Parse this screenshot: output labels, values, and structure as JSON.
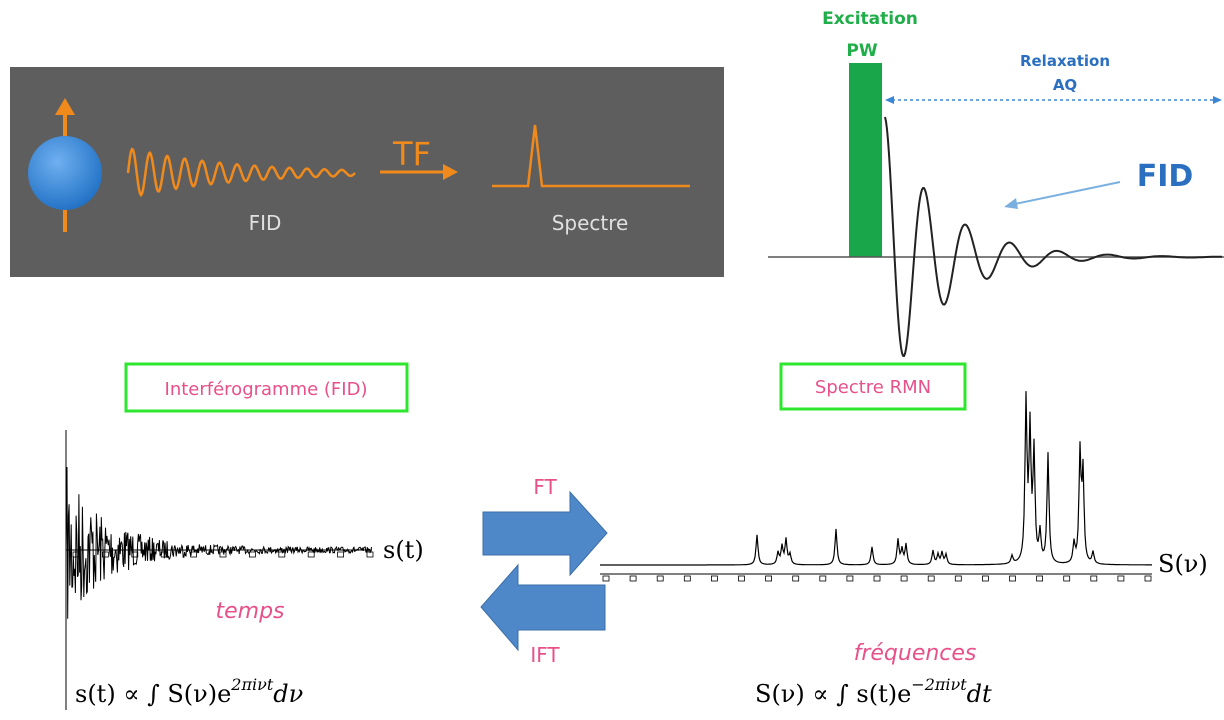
{
  "top_left": {
    "transform": "TF",
    "fid": "FID",
    "spectrum": "Spectre"
  },
  "top_right": {
    "excitation": "Excitation",
    "pulse": "PW",
    "relaxation": "Relaxation",
    "acquisition": "AQ",
    "fid": "FID"
  },
  "bottom": {
    "left_box": "Interférogramme (FID)",
    "right_box": "Spectre RMN",
    "forward": "FT",
    "inverse": "IFT",
    "time_signal": "s(t)",
    "freq_signal": "S(ν)",
    "time_label": "temps",
    "freq_label": "fréquences",
    "formula_left": {
      "main": "s(t) ∝ ∫ S(ν)e",
      "exponent": "2πiνt",
      "tail": "dν"
    },
    "formula_right": {
      "main": "S(ν) ∝ ∫ s(t)e",
      "exponent": "−2πiνt",
      "tail": "dt"
    }
  }
}
